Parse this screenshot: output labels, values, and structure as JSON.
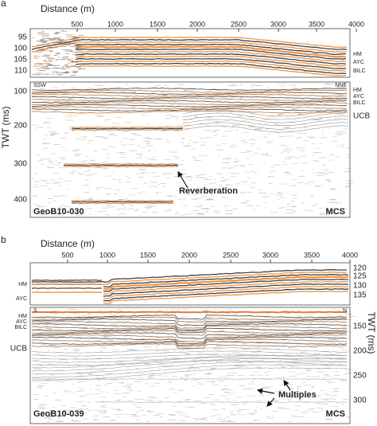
{
  "panels": [
    {
      "label": "a",
      "x_axis_label": "Distance (m)",
      "x_ticks": [
        "500",
        "1000",
        "1500",
        "2000",
        "2500",
        "3000",
        "3500",
        "4000"
      ],
      "top_y_ticks": [
        "95",
        "100",
        "105",
        "110"
      ],
      "top_horizons": [
        "HM",
        "AYC",
        "BILC"
      ],
      "main_y_axis_label": "TWT (ms)",
      "main_y_ticks": [
        "100",
        "200",
        "300",
        "400"
      ],
      "main_horizons": [
        "HM",
        "AYC",
        "BILC",
        "UCB"
      ],
      "left_direction": "SSW",
      "right_direction": "NNE",
      "annotations": [
        "Reverberation"
      ],
      "profile": "GeoB10-030",
      "method": "MCS"
    },
    {
      "label": "b",
      "x_axis_label": "Distance (m)",
      "x_ticks": [
        "500",
        "1000",
        "1500",
        "2000",
        "2500",
        "3000",
        "3500",
        "4000"
      ],
      "top_y_ticks": [
        "120",
        "125",
        "130",
        "135"
      ],
      "top_horizons": [
        "HM",
        "AYC"
      ],
      "main_y_axis_label": "TWT (ms)",
      "main_y_ticks": [
        "150",
        "200",
        "250",
        "300"
      ],
      "main_horizons": [
        "HM",
        "AYC",
        "BILC",
        "UCB"
      ],
      "left_direction": "S",
      "right_direction": "N",
      "annotations": [
        "Multiples"
      ],
      "profile": "GeoB10-039",
      "method": "MCS"
    }
  ]
}
